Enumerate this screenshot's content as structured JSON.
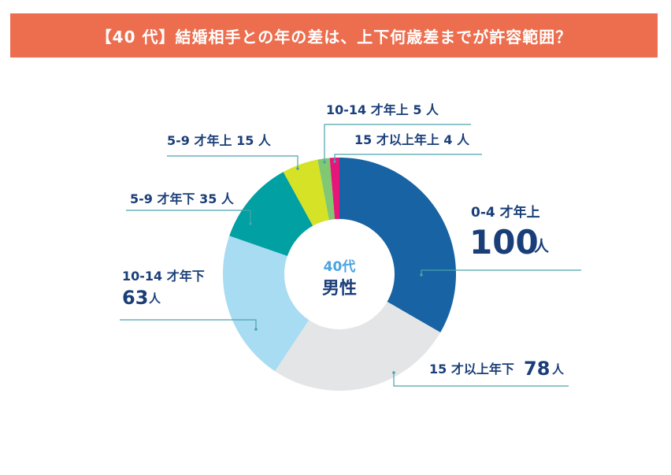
{
  "title": "【40 代】結婚相手との年の差は、上下何歳差までが許容範囲？",
  "center_label": {
    "line1": "40代",
    "line2": "男性"
  },
  "colors": {
    "title_bg": "#ec6e4f",
    "text_dark": "#1a3e78",
    "leader_line": "#4aa3ad",
    "center_line1": "#4aa3e0"
  },
  "chart_data": {
    "type": "pie",
    "title": "【40 代】結婚相手との年の差は、上下何歳差までが許容範囲？",
    "unit": "人",
    "donut": true,
    "slices": [
      {
        "label": "0-4 才年上",
        "value": 100,
        "color": "#1763a3"
      },
      {
        "label": "15 才以上年下",
        "value": 78,
        "color": "#e4e5e6"
      },
      {
        "label": "10-14 才年下",
        "value": 63,
        "color": "#a8dcf2"
      },
      {
        "label": "5-9 才年下",
        "value": 35,
        "color": "#00a0a3"
      },
      {
        "label": "5-9 才年上",
        "value": 15,
        "color": "#d6e225"
      },
      {
        "label": "10-14 才年上",
        "value": 5,
        "color": "#80c872"
      },
      {
        "label": "15 才以上年上",
        "value": 4,
        "color": "#e5157a"
      }
    ]
  }
}
